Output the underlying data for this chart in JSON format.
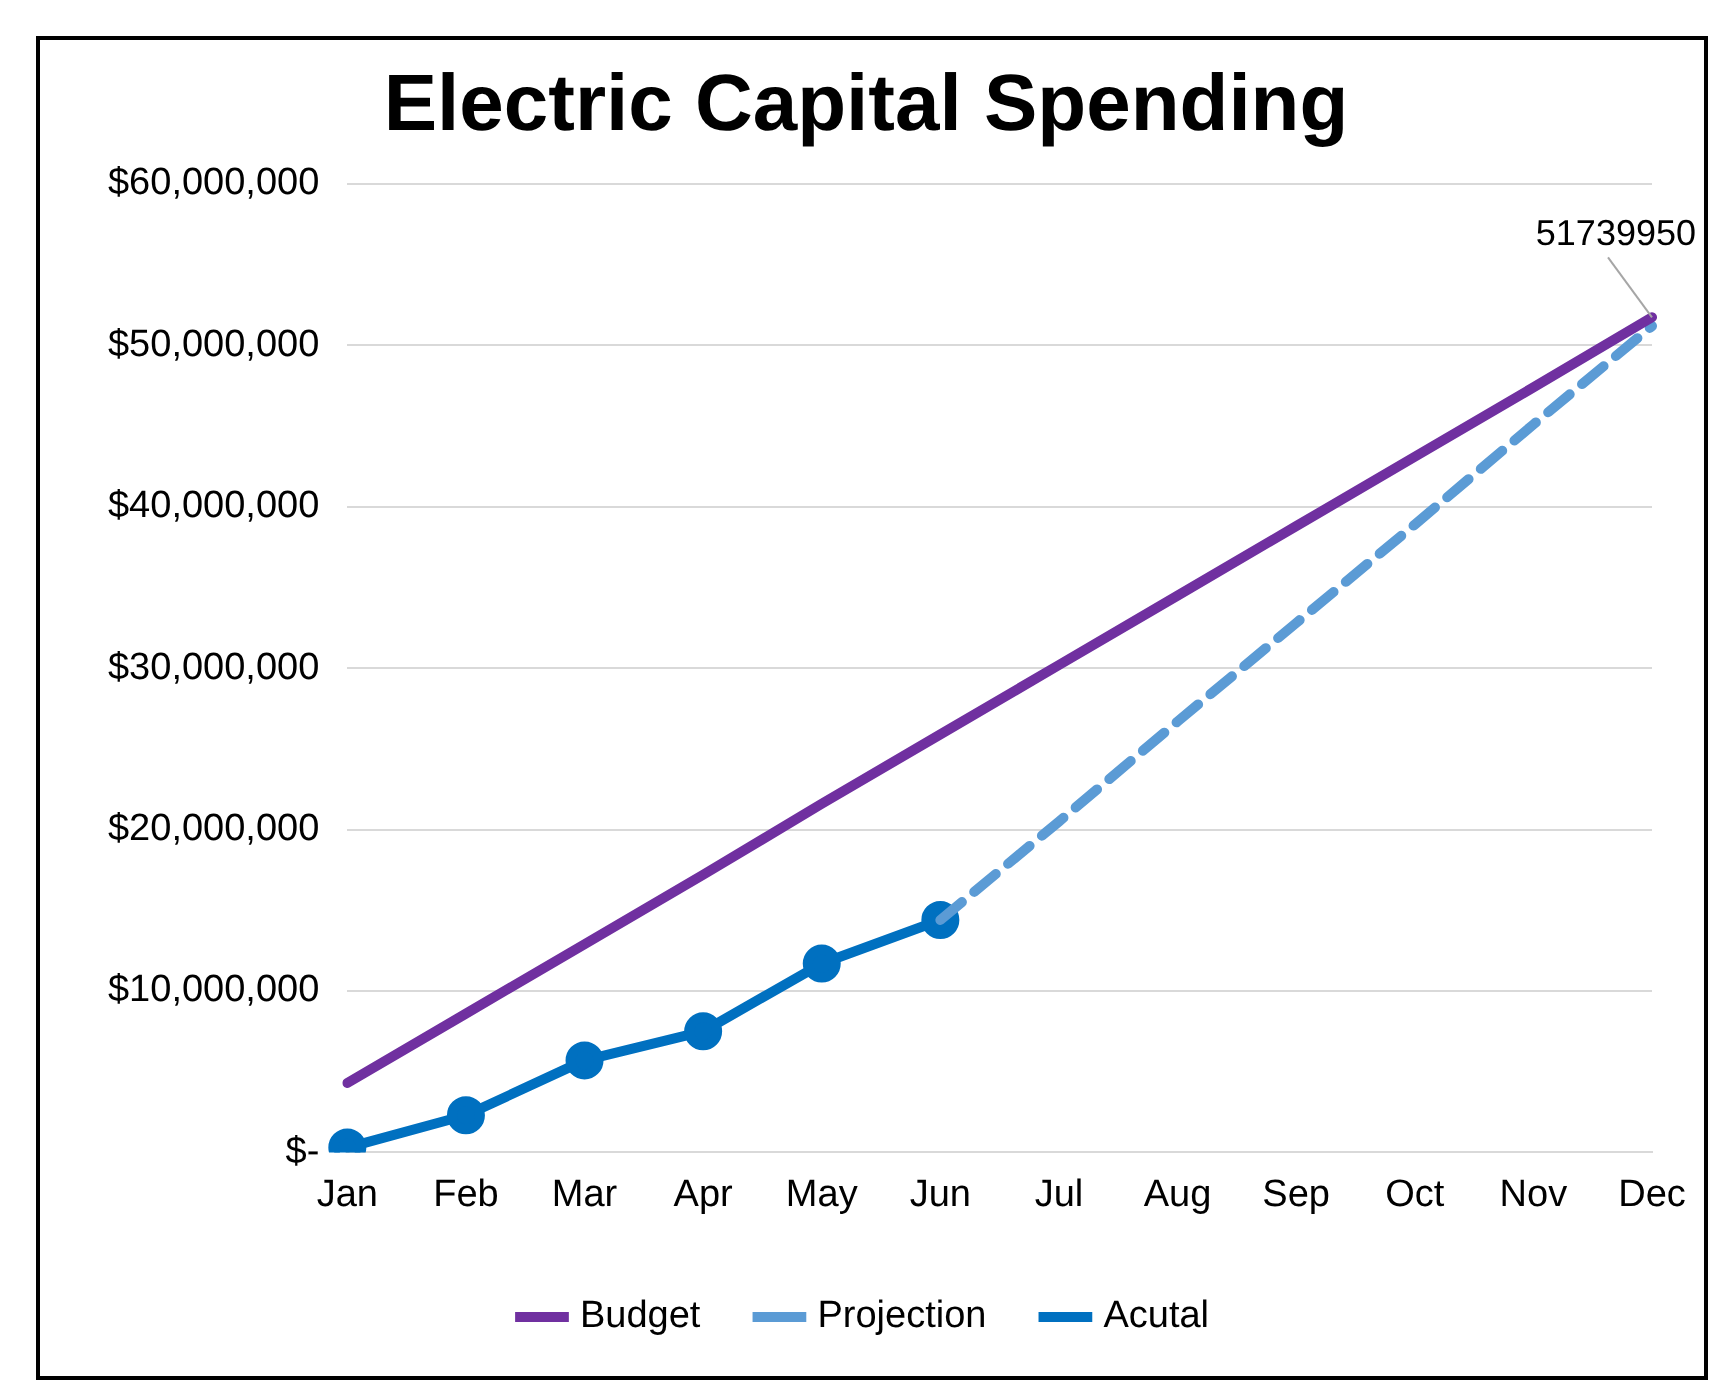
{
  "chart_data": {
    "type": "line",
    "title": "Electric Capital Spending",
    "categories": [
      "Jan",
      "Feb",
      "Mar",
      "Apr",
      "May",
      "Jun",
      "Jul",
      "Aug",
      "Sep",
      "Oct",
      "Nov",
      "Dec"
    ],
    "series": [
      {
        "name": "Budget",
        "color": "#7030a0",
        "line_style": "solid",
        "marker": "none",
        "values": [
          4300000,
          8600000,
          12900000,
          17200000,
          21600000,
          25900000,
          30200000,
          34500000,
          38800000,
          43100000,
          47400000,
          51739950
        ]
      },
      {
        "name": "Projection",
        "color": "#5b9bd5",
        "line_style": "dashed",
        "marker": "none",
        "values": [
          null,
          null,
          null,
          null,
          null,
          14400000,
          20500000,
          26700000,
          32800000,
          38900000,
          45100000,
          51200000
        ]
      },
      {
        "name": "Acutal",
        "color": "#0070c0",
        "line_style": "solid",
        "marker": "circle",
        "values": [
          300000,
          2300000,
          5700000,
          7500000,
          11700000,
          14400000,
          null,
          null,
          null,
          null,
          null,
          null
        ]
      }
    ],
    "ylim": [
      0,
      60000000
    ],
    "yticks": [
      {
        "value": 0,
        "label": "$-"
      },
      {
        "value": 10000000,
        "label": "$10,000,000"
      },
      {
        "value": 20000000,
        "label": "$20,000,000"
      },
      {
        "value": 30000000,
        "label": "$30,000,000"
      },
      {
        "value": 40000000,
        "label": "$40,000,000"
      },
      {
        "value": 50000000,
        "label": "$50,000,000"
      },
      {
        "value": 60000000,
        "label": "$60,000,000"
      }
    ],
    "grid": "y",
    "legend": "bottom",
    "annotations": [
      {
        "text": "51739950",
        "x": "Dec",
        "y": 51739950
      }
    ]
  }
}
